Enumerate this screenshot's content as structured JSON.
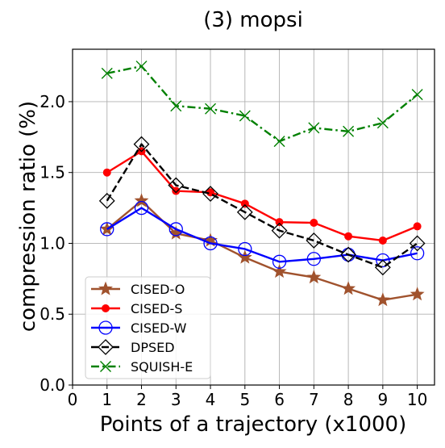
{
  "chart_data": {
    "type": "line",
    "title": "(3) mopsi",
    "xlabel": "Points of a trajectory (x1000)",
    "ylabel": "compression ratio (%)",
    "xlim": [
      0,
      10.5
    ],
    "ylim": [
      0,
      2.37
    ],
    "xticks": [
      0,
      1,
      2,
      3,
      4,
      5,
      6,
      7,
      8,
      9,
      10
    ],
    "yticks": [
      0.0,
      0.5,
      1.0,
      1.5,
      2.0
    ],
    "ytick_labels": [
      "0.0",
      "0.5",
      "1.0",
      "1.5",
      "2.0"
    ],
    "grid": true,
    "legend_position": "lower-left",
    "x": [
      1,
      2,
      3,
      4,
      5,
      6,
      7,
      8,
      9,
      10
    ],
    "series": [
      {
        "name": "CISED-O",
        "color": "#a0522d",
        "marker": "star",
        "dash": "solid",
        "values": [
          1.1,
          1.3,
          1.07,
          1.02,
          0.9,
          0.8,
          0.76,
          0.68,
          0.6,
          0.64
        ]
      },
      {
        "name": "CISED-S",
        "color": "#ff0000",
        "marker": "circle-filled",
        "dash": "solid",
        "values": [
          1.5,
          1.65,
          1.37,
          1.36,
          1.28,
          1.15,
          1.145,
          1.05,
          1.02,
          1.12
        ]
      },
      {
        "name": "CISED-W",
        "color": "#0000ff",
        "marker": "circle-open",
        "dash": "solid",
        "values": [
          1.1,
          1.25,
          1.1,
          1.0,
          0.96,
          0.87,
          0.89,
          0.92,
          0.88,
          0.93
        ]
      },
      {
        "name": "DPSED",
        "color": "#000000",
        "marker": "diamond-open",
        "dash": "dashed",
        "values": [
          1.3,
          1.7,
          1.41,
          1.35,
          1.22,
          1.09,
          1.02,
          0.92,
          0.83,
          1.0
        ]
      },
      {
        "name": "SQUISH-E",
        "color": "#008000",
        "marker": "x",
        "dash": "dashdot",
        "values": [
          2.2,
          2.25,
          1.97,
          1.95,
          1.9,
          1.72,
          1.815,
          1.79,
          1.85,
          2.05
        ]
      }
    ]
  }
}
